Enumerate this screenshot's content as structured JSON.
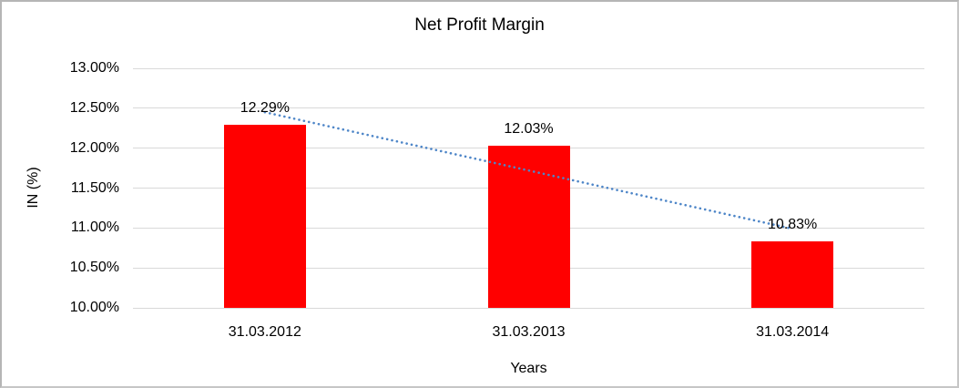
{
  "chart_data": {
    "type": "bar",
    "title": "Net Profit Margin",
    "xlabel": "Years",
    "ylabel": "IN (%)",
    "categories": [
      "31.03.2012",
      "31.03.2013",
      "31.03.2014"
    ],
    "values": [
      12.29,
      12.03,
      10.83
    ],
    "data_labels": [
      "12.29%",
      "12.03%",
      "10.83%"
    ],
    "ylim": [
      10.0,
      13.0
    ],
    "ytick_step": 0.5,
    "ytick_labels": [
      "13.00%",
      "12.50%",
      "12.00%",
      "11.50%",
      "11.00%",
      "10.50%",
      "10.00%"
    ],
    "grid": true,
    "legend": "none",
    "colors": {
      "bar": "#FF0000",
      "gridline": "#D9D9D9",
      "trendline": "#4E86C8",
      "text": "#000000"
    },
    "trendline": {
      "type": "linear",
      "style": "dotted",
      "start_value": 12.45,
      "end_value": 10.99
    }
  }
}
